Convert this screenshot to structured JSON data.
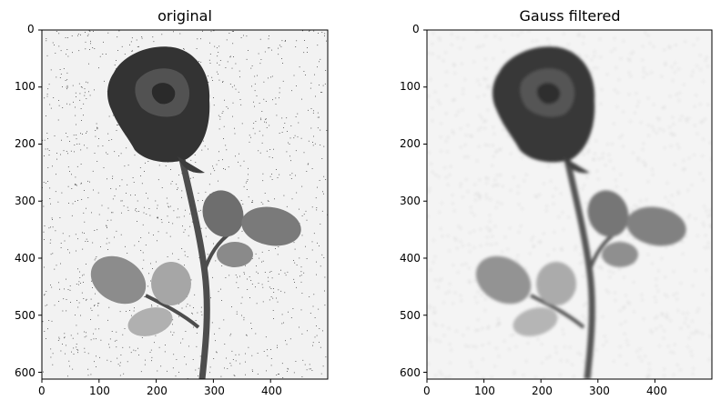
{
  "figure": {
    "panels": [
      {
        "title": "original",
        "x_ticks": [
          "0",
          "100",
          "200",
          "300",
          "400"
        ],
        "y_ticks": [
          "0",
          "100",
          "200",
          "300",
          "400",
          "500",
          "600"
        ],
        "image_width": 500,
        "image_height": 612,
        "filtered": false
      },
      {
        "title": "Gauss filtered",
        "x_ticks": [
          "0",
          "100",
          "200",
          "300",
          "400"
        ],
        "y_ticks": [
          "0",
          "100",
          "200",
          "300",
          "400",
          "500",
          "600"
        ],
        "image_width": 500,
        "image_height": 612,
        "filtered": true
      }
    ]
  },
  "colors": {
    "background": "#ffffff",
    "axis": "#000000",
    "rose_dark": "#2e2e2e",
    "rose_mid": "#4a4a4a",
    "leaf": "#7a7a7a",
    "stem": "#555555"
  }
}
